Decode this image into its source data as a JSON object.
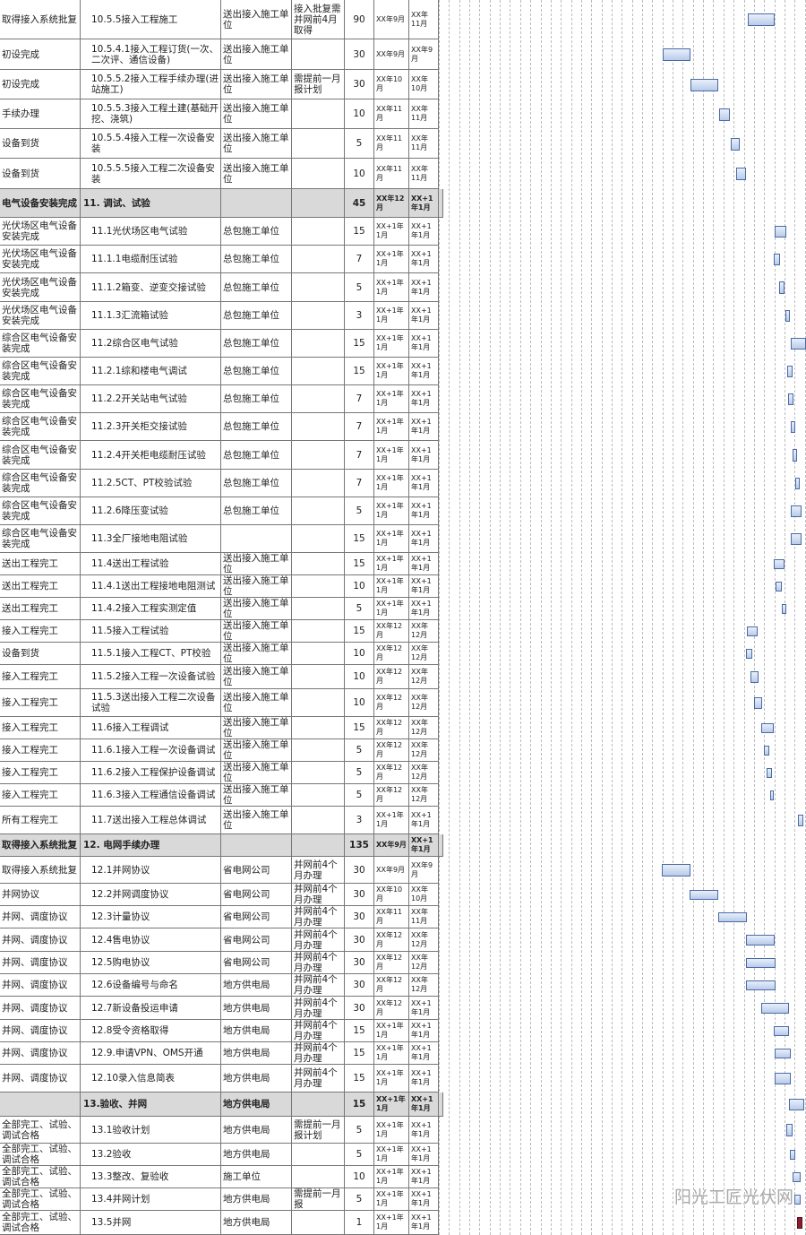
{
  "table": {
    "rows": [
      [
        "取得接入系统批复",
        "10.5.5接入工程施工",
        "送出接入施工单位",
        "接入批复需并网前4月取得",
        90,
        "XX年9月",
        "XX年11月"
      ],
      [
        "初设完成",
        "10.5.4.1接入工程订货(一次、二次评、通信设备)",
        "送出接入施工单位",
        null,
        30,
        "XX年9月",
        "XX年9月"
      ],
      [
        "初设完成",
        "10.5.5.2接入工程手续办理(进站施工)",
        "送出接入施工单位",
        "需提前一月报计划",
        30,
        "XX年10月",
        "XX年10月"
      ],
      [
        "手续办理",
        "10.5.5.3接入工程土建(基础开挖、浇筑)",
        "送出接入施工单位",
        null,
        10,
        "XX年11月",
        "XX年11月"
      ],
      [
        "设备到货",
        "10.5.5.4接入工程一次设备安装",
        "送出接入施工单位",
        null,
        5,
        "XX年11月",
        "XX年11月"
      ],
      [
        "设备到货",
        "10.5.5.5接入工程二次设备安装",
        "送出接入施工单位",
        null,
        10,
        "XX年11月",
        "XX年11月"
      ],
      [
        "电气设备安装完成",
        "11. 调试、试验",
        null,
        null,
        45,
        "XX年12月",
        "XX+1年1月"
      ],
      [
        "光伏场区电气设备安装完成",
        "11.1光伏场区电气试验",
        "总包施工单位",
        null,
        15,
        "XX+1年1月",
        "XX+1年1月"
      ],
      [
        "光伏场区电气设备安装完成",
        "11.1.1电缆耐压试验",
        "总包施工单位",
        null,
        7,
        "XX+1年1月",
        "XX+1年1月"
      ],
      [
        "光伏场区电气设备安装完成",
        "11.1.2箱变、逆变交接试验",
        "总包施工单位",
        null,
        5,
        "XX+1年1月",
        "XX+1年1月"
      ],
      [
        "光伏场区电气设备安装完成",
        "11.1.3汇流箱试验",
        "总包施工单位",
        null,
        3,
        "XX+1年1月",
        "XX+1年1月"
      ],
      [
        "综合区电气设备安装完成",
        "11.2综合区电气试验",
        "总包施工单位",
        null,
        15,
        "XX+1年1月",
        "XX+1年1月"
      ],
      [
        "综合区电气设备安装完成",
        "11.2.1综和楼电气调试",
        "总包施工单位",
        null,
        15,
        "XX+1年1月",
        "XX+1年1月"
      ],
      [
        "综合区电气设备安装完成",
        "11.2.2开关站电气试验",
        "总包施工单位",
        null,
        7,
        "XX+1年1月",
        "XX+1年1月"
      ],
      [
        "综合区电气设备安装完成",
        "11.2.3开关柜交接试验",
        "总包施工单位",
        null,
        7,
        "XX+1年1月",
        "XX+1年1月"
      ],
      [
        "综合区电气设备安装完成",
        "11.2.4开关柜电缆耐压试验",
        "总包施工单位",
        null,
        7,
        "XX+1年1月",
        "XX+1年1月"
      ],
      [
        "综合区电气设备安装完成",
        "11.2.5CT、PT校验试验",
        "总包施工单位",
        null,
        7,
        "XX+1年1月",
        "XX+1年1月"
      ],
      [
        "综合区电气设备安装完成",
        "11.2.6降压变试验",
        "总包施工单位",
        null,
        5,
        "XX+1年1月",
        "XX+1年1月"
      ],
      [
        "综合区电气设备安装完成",
        "11.3全厂接地电阻试验",
        null,
        null,
        15,
        "XX+1年1月",
        "XX+1年1月"
      ],
      [
        "送出工程完工",
        "11.4送出工程试验",
        "送出接入施工单位",
        null,
        15,
        "XX+1年1月",
        "XX+1年1月"
      ],
      [
        "送出工程完工",
        "11.4.1送出工程接地电阻测试",
        "送出接入施工单位",
        null,
        10,
        "XX+1年1月",
        "XX+1年1月"
      ],
      [
        "送出工程完工",
        "11.4.2接入工程实测定值",
        "送出接入施工单位",
        null,
        5,
        "XX+1年1月",
        "XX+1年1月"
      ],
      [
        "接入工程完工",
        "11.5接入工程试验",
        "送出接入施工单位",
        null,
        15,
        "XX年12月",
        "XX年12月"
      ],
      [
        "设备到货",
        "11.5.1接入工程CT、PT校验",
        "送出接入施工单位",
        null,
        10,
        "XX年12月",
        "XX年12月"
      ],
      [
        "接入工程完工",
        "11.5.2接入工程一次设备试验",
        "送出接入施工单位",
        null,
        10,
        "XX年12月",
        "XX年12月"
      ],
      [
        "接入工程完工",
        "11.5.3送出接入工程二次设备试验",
        "送出接入施工单位",
        null,
        10,
        "XX年12月",
        "XX年12月"
      ],
      [
        "接入工程完工",
        "11.6接入工程调试",
        "送出接入施工单位",
        null,
        15,
        "XX年12月",
        "XX年12月"
      ],
      [
        "接入工程完工",
        "11.6.1接入工程一次设备调试",
        "送出接入施工单位",
        null,
        5,
        "XX年12月",
        "XX年12月"
      ],
      [
        "接入工程完工",
        "11.6.2接入工程保护设备调试",
        "送出接入施工单位",
        null,
        5,
        "XX年12月",
        "XX年12月"
      ],
      [
        "接入工程完工",
        "11.6.3接入工程通信设备调试",
        "送出接入施工单位",
        null,
        5,
        "XX年12月",
        "XX年12月"
      ],
      [
        "所有工程完工",
        "11.7送出接入工程总体调试",
        "送出接入施工单位",
        null,
        3,
        "XX+1年1月",
        "XX+1年1月"
      ],
      [
        "取得接入系统批复",
        "12. 电网手续办理",
        null,
        null,
        135,
        "XX年9月",
        "XX+1年1月"
      ],
      [
        "取得接入系统批复",
        "12.1并网协议",
        "省电网公司",
        "并网前4个月办理",
        30,
        "XX年9月",
        "XX年9月"
      ],
      [
        "并网协议",
        "12.2并网调度协议",
        "省电网公司",
        "并网前4个月办理",
        30,
        "XX年10月",
        "XX年10月"
      ],
      [
        "并网、调度协议",
        "12.3计量协议",
        "省电网公司",
        "并网前4个月办理",
        30,
        "XX年11月",
        "XX年11月"
      ],
      [
        "并网、调度协议",
        "12.4售电协议",
        "省电网公司",
        "并网前4个月办理",
        30,
        "XX年12月",
        "XX年12月"
      ],
      [
        "并网、调度协议",
        "12.5购电协议",
        "省电网公司",
        "并网前4个月办理",
        30,
        "XX年12月",
        "XX年12月"
      ],
      [
        "并网、调度协议",
        "12.6设备编号与命名",
        "地方供电局",
        "并网前4个月办理",
        30,
        "XX年12月",
        "XX年12月"
      ],
      [
        "并网、调度协议",
        "12.7新设备投运申请",
        "地方供电局",
        "并网前4个月办理",
        30,
        "XX年12月",
        "XX+1年1月"
      ],
      [
        "并网、调度协议",
        "12.8受令资格取得",
        "地方供电局",
        "并网前4个月办理",
        15,
        "XX+1年1月",
        "XX+1年1月"
      ],
      [
        "并网、调度协议",
        "12.9.申请VPN、OMS开通",
        "地方供电局",
        "并网前4个月办理",
        15,
        "XX+1年1月",
        "XX+1年1月"
      ],
      [
        "并网、调度协议",
        "12.10录入信息简表",
        "地方供电局",
        "并网前4个月办理",
        15,
        "XX+1年1月",
        "XX+1年1月"
      ],
      [
        null,
        "13.验收、并网",
        "地方供电局",
        null,
        15,
        "XX+1年1月",
        "XX+1年1月"
      ],
      [
        "全部完工、试验、调试合格",
        "13.1验收计划",
        "地方供电局",
        "需提前一月报计划",
        5,
        "XX+1年1月",
        "XX+1年1月"
      ],
      [
        "全部完工、试验、调试合格",
        "13.2验收",
        "地方供电局",
        null,
        5,
        "XX+1年1月",
        "XX+1年1月"
      ],
      [
        "全部完工、试验、调试合格",
        "13.3整改、复验收",
        "施工单位",
        null,
        10,
        "XX+1年1月",
        "XX+1年1月"
      ],
      [
        "全部完工、试验、调试合格",
        "13.4并网计划",
        "地方供电局",
        "需提前一月报",
        5,
        "XX+1年1月",
        "XX+1年1月"
      ],
      [
        "全部完工、试验、调试合格",
        "13.5并网",
        "地方供电局",
        null,
        1,
        "XX+1年1月",
        "XX+1年1月"
      ]
    ]
  },
  "watermark": "阳光工匠光伏网"
}
